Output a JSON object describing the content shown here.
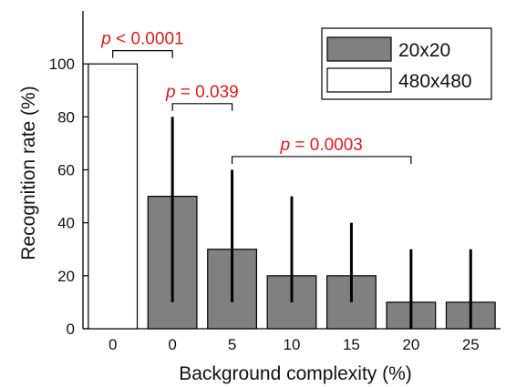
{
  "chart_data": {
    "type": "bar",
    "title": "",
    "xlabel": "Background complexity (%)",
    "ylabel": "Recognition rate (%)",
    "ylim": [
      0,
      120
    ],
    "yticks": [
      0,
      20,
      40,
      60,
      80,
      100
    ],
    "categories": [
      "0",
      "0",
      "5",
      "10",
      "15",
      "20",
      "25"
    ],
    "bars": [
      {
        "category": "0",
        "series": "480x480",
        "value": 100,
        "err_low": null,
        "err_high": null
      },
      {
        "category": "0",
        "series": "20x20",
        "value": 50,
        "err_low": 10,
        "err_high": 80
      },
      {
        "category": "5",
        "series": "20x20",
        "value": 30,
        "err_low": 10,
        "err_high": 60
      },
      {
        "category": "10",
        "series": "20x20",
        "value": 20,
        "err_low": 10,
        "err_high": 50
      },
      {
        "category": "15",
        "series": "20x20",
        "value": 20,
        "err_low": 10,
        "err_high": 40
      },
      {
        "category": "20",
        "series": "20x20",
        "value": 10,
        "err_low": 0,
        "err_high": 30
      },
      {
        "category": "25",
        "series": "20x20",
        "value": 10,
        "err_low": 0,
        "err_high": 30
      }
    ],
    "series": [
      {
        "name": "20x20",
        "color": "#808080"
      },
      {
        "name": "480x480",
        "color": "#ffffff"
      }
    ],
    "legend_position": "top-right",
    "significance": [
      {
        "from_bar": 0,
        "to_bar": 1,
        "level": 105,
        "prefix": "p",
        "op": " < ",
        "value": "0.0001"
      },
      {
        "from_bar": 1,
        "to_bar": 2,
        "level": 85,
        "prefix": "p",
        "op": " = ",
        "value": "0.039"
      },
      {
        "from_bar": 2,
        "to_bar": 5,
        "level": 65,
        "prefix": "p",
        "op": " = ",
        "value": "0.0003"
      }
    ],
    "colors": {
      "significance": "#e31a1c",
      "axis": "#000000",
      "bar_edge": "#000000"
    },
    "grid": false
  }
}
